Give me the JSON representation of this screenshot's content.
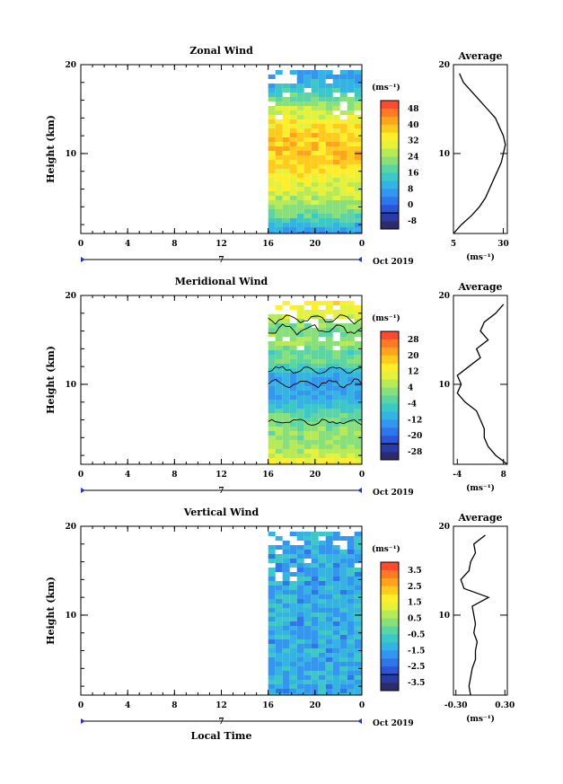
{
  "figure": {
    "xaxis_label": "Local Time",
    "date_label": "Oct 2019",
    "day_label": "7",
    "panels": [
      {
        "title": "Zonal Wind",
        "ylabel": "Height (km)",
        "unit": "(ms⁻¹)",
        "colorbar_ticks": [
          "48",
          "40",
          "32",
          "24",
          "16",
          "8",
          "0",
          "-8"
        ],
        "colorbar_colors": [
          "#ff4a2e",
          "#ff7a24",
          "#ffa51c",
          "#ffcb1c",
          "#ffee2a",
          "#e4f23c",
          "#b6ea56",
          "#88e07a",
          "#5cd5a2",
          "#3cc8c8",
          "#33b4e2",
          "#3396f0",
          "#2f76ea",
          "#2c55d8",
          "#2a3aa6",
          "#2c2c6c"
        ],
        "avg_title": "Average",
        "avg_unit": "(ms⁻¹)",
        "avg_xticks": [
          "5",
          "30"
        ]
      },
      {
        "title": "Meridional Wind",
        "ylabel": "Height (km)",
        "unit": "(ms⁻¹)",
        "colorbar_ticks": [
          "28",
          "20",
          "12",
          "4",
          "-4",
          "-12",
          "-20",
          "-28"
        ],
        "colorbar_colors": [
          "#ff4a2e",
          "#ff7a24",
          "#ffa51c",
          "#ffcb1c",
          "#ffee2a",
          "#e4f23c",
          "#b6ea56",
          "#88e07a",
          "#5cd5a2",
          "#3cc8c8",
          "#33b4e2",
          "#3396f0",
          "#2f76ea",
          "#2c55d8",
          "#2a3aa6",
          "#2c2c6c"
        ],
        "avg_title": "Average",
        "avg_unit": "(ms⁻¹)",
        "avg_xticks": [
          "-4",
          "8"
        ]
      },
      {
        "title": "Vertical Wind",
        "ylabel": "Height (km)",
        "unit": "(ms⁻¹)",
        "colorbar_ticks": [
          "3.5",
          "2.5",
          "1.5",
          "0.5",
          "-0.5",
          "-1.5",
          "-2.5",
          "-3.5"
        ],
        "colorbar_colors": [
          "#ff4a2e",
          "#ff7a24",
          "#ffa51c",
          "#ffcb1c",
          "#ffee2a",
          "#e4f23c",
          "#b6ea56",
          "#88e07a",
          "#5cd5a2",
          "#3cc8c8",
          "#33b4e2",
          "#3396f0",
          "#2f76ea",
          "#2c55d8",
          "#2a3aa6",
          "#2c2c6c"
        ],
        "avg_title": "Average",
        "avg_unit": "(ms⁻¹)",
        "avg_xticks": [
          "-0.30",
          "0.30"
        ]
      }
    ]
  },
  "chart_data": [
    {
      "type": "heatmap",
      "title": "Zonal Wind",
      "xlabel": "",
      "ylabel": "Height (km)",
      "x_ticks": [
        "0",
        "4",
        "8",
        "12",
        "16",
        "20",
        "0"
      ],
      "y_ticks": [
        "10",
        "20"
      ],
      "xlim": [
        0,
        24
      ],
      "ylim": [
        1,
        20
      ],
      "data_xrange": [
        16,
        24
      ],
      "colorbar_range": [
        -8,
        48
      ],
      "profile": {
        "title": "Average",
        "xticks": [
          5,
          30
        ],
        "xlim": [
          5,
          32
        ],
        "height": [
          1,
          2,
          3,
          4,
          5,
          6,
          7,
          8,
          9,
          10,
          11,
          12,
          13,
          14,
          15,
          16,
          17,
          18,
          19
        ],
        "value": [
          5,
          9,
          14,
          18,
          21,
          23,
          25,
          27,
          29,
          30,
          31,
          30,
          28,
          26,
          22,
          18,
          14,
          10,
          8
        ]
      }
    },
    {
      "type": "heatmap",
      "title": "Meridional Wind",
      "xlabel": "",
      "ylabel": "Height (km)",
      "x_ticks": [
        "0",
        "4",
        "8",
        "12",
        "16",
        "20",
        "0"
      ],
      "y_ticks": [
        "10",
        "20"
      ],
      "xlim": [
        0,
        24
      ],
      "ylim": [
        1,
        20
      ],
      "data_xrange": [
        16,
        24
      ],
      "colorbar_range": [
        -28,
        28
      ],
      "profile": {
        "title": "Average",
        "xticks": [
          -4,
          8
        ],
        "xlim": [
          -5,
          9
        ],
        "height": [
          1,
          2,
          3,
          4,
          5,
          6,
          7,
          8,
          9,
          10,
          11,
          12,
          13,
          14,
          15,
          16,
          17,
          18,
          19
        ],
        "value": [
          9,
          6,
          4,
          3,
          3,
          2,
          1,
          -2,
          -4,
          -3,
          -4,
          -1,
          2,
          1,
          4,
          2,
          3,
          6,
          8
        ]
      }
    },
    {
      "type": "heatmap",
      "title": "Vertical Wind",
      "xlabel": "Local Time",
      "ylabel": "Height (km)",
      "x_ticks": [
        "0",
        "4",
        "8",
        "12",
        "16",
        "20",
        "0"
      ],
      "y_ticks": [
        "10",
        "20"
      ],
      "xlim": [
        0,
        24
      ],
      "ylim": [
        1,
        20
      ],
      "data_xrange": [
        16,
        24
      ],
      "colorbar_range": [
        -3.5,
        3.5
      ],
      "profile": {
        "title": "Average",
        "xticks": [
          -0.3,
          0.3
        ],
        "xlim": [
          -0.33,
          0.33
        ],
        "height": [
          1,
          2,
          3,
          4,
          5,
          6,
          7,
          8,
          9,
          10,
          11,
          12,
          13,
          14,
          15,
          16,
          17,
          18,
          19
        ],
        "value": [
          -0.12,
          -0.14,
          -0.12,
          -0.1,
          -0.06,
          -0.06,
          -0.04,
          -0.08,
          -0.06,
          -0.08,
          -0.1,
          0.1,
          -0.2,
          -0.24,
          -0.14,
          -0.12,
          -0.06,
          -0.08,
          0.06
        ]
      }
    }
  ]
}
